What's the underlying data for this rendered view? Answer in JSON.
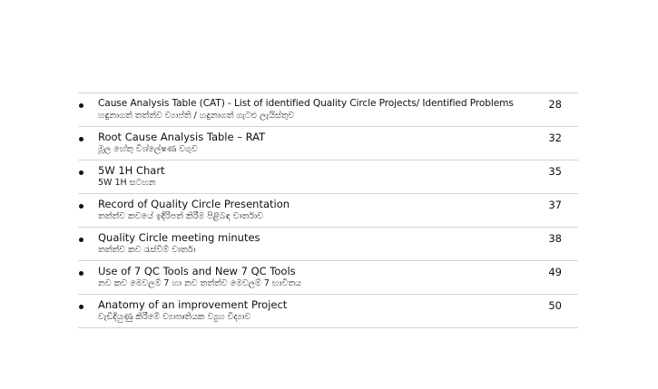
{
  "toc": {
    "entries": [
      {
        "title": "Cause Analysis Table (CAT) - List of identified Quality Circle Projects/ Identified Problems",
        "subtitle": "හඳුනාගත් තත්ත්ව ව්‍යාප්ති / හඳුනාගත් ගැටළු ලැයිස්තුව",
        "page": "28"
      },
      {
        "title": "Root Cause Analysis Table – RAT",
        "subtitle": "මූල හේතු විශ්ලේෂණ වගුව",
        "page": "32"
      },
      {
        "title": "5W 1H Chart",
        "subtitle": "5W 1H සටහන",
        "page": "35"
      },
      {
        "title": "Record of Quality Circle Presentation",
        "subtitle": "තත්ත්ව කවයේ ඉදිරිපත් කිරීම පිළිබඳ වාර්තාව",
        "page": "37"
      },
      {
        "title": "Quality Circle meeting minutes",
        "subtitle": "තත්ත්ව කව රැස්වීම් වාර්තා",
        "page": "38"
      },
      {
        "title": "Use of 7 QC Tools and New 7 QC Tools",
        "subtitle": "නව කව මෙවලම් 7 හා නව තත්ත්ව මෙවලම් 7 භාවිතය",
        "page": "49"
      },
      {
        "title": "Anatomy of an improvement Project",
        "subtitle": "වැඩිදියුණු කිරීමේ ව්‍යාපෘතියක ව්‍යුහ විද්‍යාව",
        "page": "50"
      }
    ]
  }
}
